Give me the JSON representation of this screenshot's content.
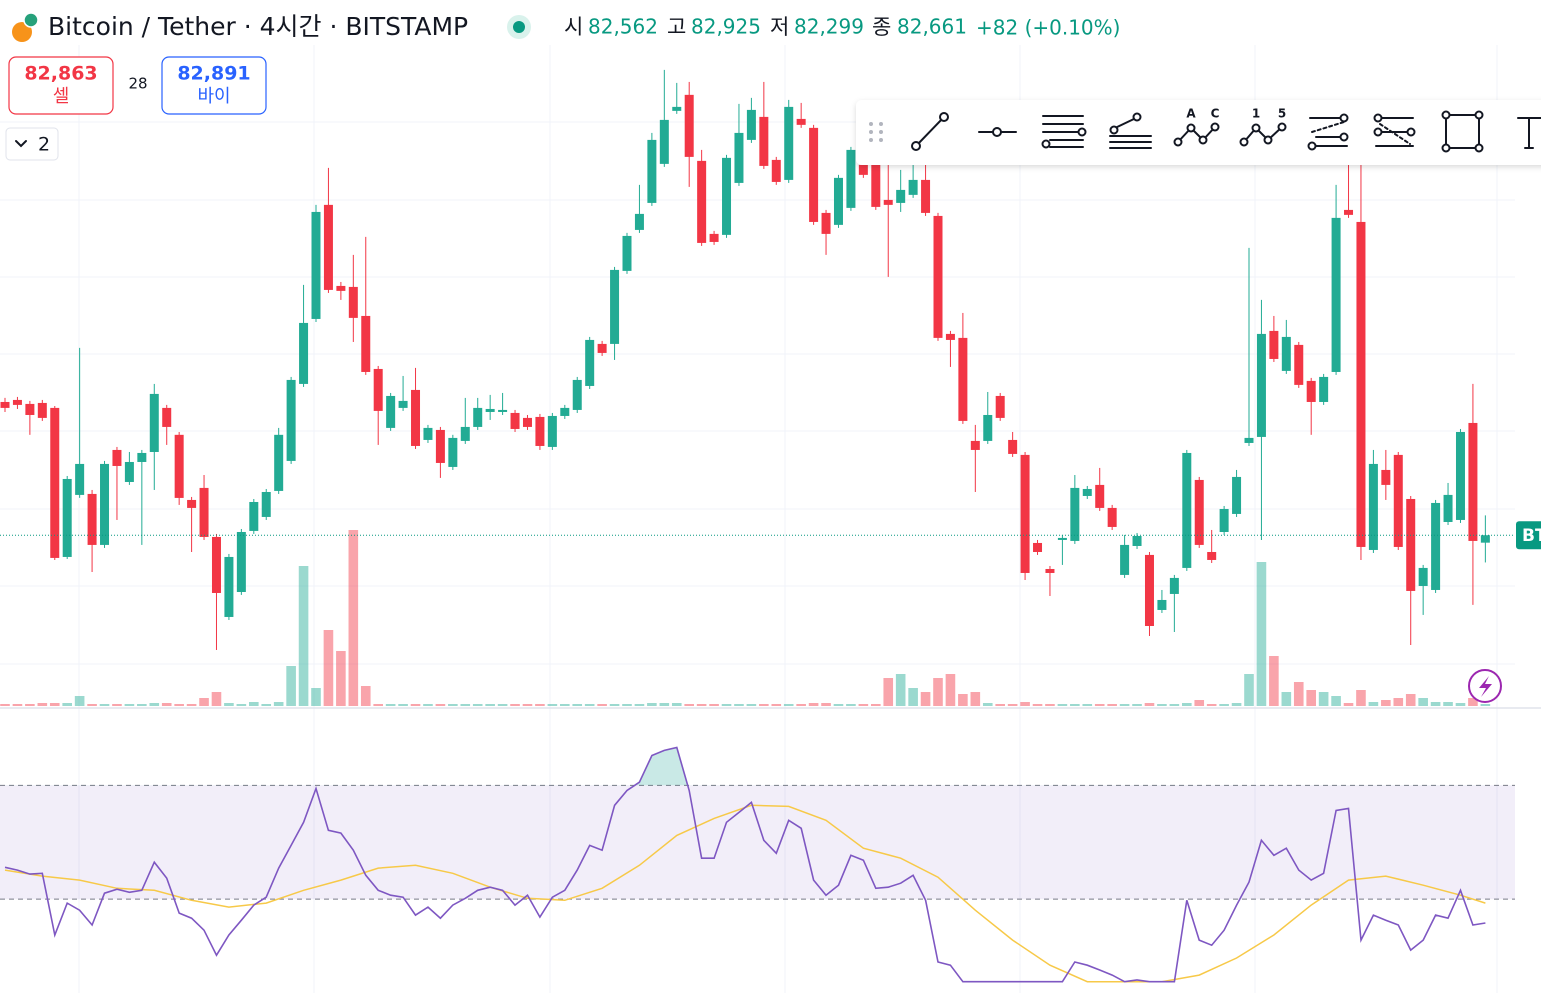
{
  "header": {
    "symbol": "Bitcoin / Tether · 4시간 · BITSTAMP",
    "open_label": "시",
    "open": "82,562",
    "high_label": "고",
    "high": "82,925",
    "low_label": "저",
    "low": "82,299",
    "close_label": "종",
    "close": "82,661",
    "change": "+82 (+0.10%)"
  },
  "trade": {
    "sell_price": "82,863",
    "sell_label": "셀",
    "spread": 28,
    "buy_price": "82,891",
    "buy_label": "바이"
  },
  "indicator_toggle": "2",
  "toolbar": {
    "labels": [
      "A",
      "C",
      "1",
      "5"
    ]
  },
  "chart_data": {
    "type": "candlestick",
    "up_color": "#22ab94",
    "down_color": "#f23645",
    "ylim": [
      80390,
      89180
    ],
    "price_label": "BT",
    "ohlc": [
      [
        84433,
        84487,
        84300,
        84354
      ],
      [
        84460,
        84500,
        84340,
        84394
      ],
      [
        84407,
        84447,
        83996,
        84260
      ],
      [
        84420,
        84460,
        84181,
        84221
      ],
      [
        84354,
        84380,
        82332,
        82359
      ],
      [
        82372,
        83449,
        82345,
        83409
      ],
      [
        83197,
        85152,
        83157,
        83609
      ],
      [
        83210,
        83263,
        82172,
        82532
      ],
      [
        82532,
        83649,
        82492,
        83609
      ],
      [
        83795,
        83835,
        82864,
        83582
      ],
      [
        83369,
        83768,
        83330,
        83635
      ],
      [
        83635,
        83795,
        82532,
        83755
      ],
      [
        83768,
        84673,
        83263,
        84540
      ],
      [
        84354,
        84394,
        83862,
        84101
      ],
      [
        83996,
        84034,
        83064,
        83157
      ],
      [
        83130,
        83170,
        82438,
        83024
      ],
      [
        83290,
        83462,
        82598,
        82638
      ],
      [
        82638,
        82678,
        81135,
        81893
      ],
      [
        81574,
        82412,
        81534,
        82372
      ],
      [
        81906,
        82744,
        81867,
        82704
      ],
      [
        82718,
        83143,
        82678,
        83103
      ],
      [
        82904,
        83276,
        82864,
        83236
      ],
      [
        83250,
        84088,
        83210,
        83996
      ],
      [
        83649,
        84766,
        83609,
        84726
      ],
      [
        84673,
        85990,
        84633,
        85484
      ],
      [
        85537,
        87054,
        85497,
        86960
      ],
      [
        87054,
        87546,
        85883,
        85923
      ],
      [
        85976,
        86029,
        85790,
        85910
      ],
      [
        85963,
        86389,
        85231,
        85551
      ],
      [
        85577,
        86628,
        84793,
        84832
      ],
      [
        84872,
        84912,
        83862,
        84314
      ],
      [
        84088,
        84553,
        84048,
        84513
      ],
      [
        84354,
        84779,
        84314,
        84447
      ],
      [
        84593,
        84886,
        83808,
        83848
      ],
      [
        83928,
        84128,
        83888,
        84088
      ],
      [
        84061,
        84101,
        83423,
        83622
      ],
      [
        83569,
        83996,
        83529,
        83955
      ],
      [
        83915,
        84487,
        83875,
        84101
      ],
      [
        84101,
        84487,
        84061,
        84354
      ],
      [
        84300,
        84527,
        84194,
        84340
      ],
      [
        84300,
        84553,
        84260,
        84327
      ],
      [
        84287,
        84327,
        84034,
        84074
      ],
      [
        84221,
        84260,
        84061,
        84101
      ],
      [
        84234,
        84274,
        83795,
        83848
      ],
      [
        83835,
        84287,
        83795,
        84247
      ],
      [
        84247,
        84394,
        84207,
        84354
      ],
      [
        84327,
        84766,
        84287,
        84726
      ],
      [
        84646,
        85298,
        84606,
        85258
      ],
      [
        85205,
        85245,
        85045,
        85085
      ],
      [
        85205,
        86229,
        84992,
        86189
      ],
      [
        86176,
        86681,
        86136,
        86641
      ],
      [
        86721,
        87320,
        86681,
        86934
      ],
      [
        87080,
        88011,
        87040,
        87918
      ],
      [
        87599,
        88849,
        87559,
        88184
      ],
      [
        88304,
        88676,
        88264,
        88357
      ],
      [
        88517,
        88689,
        87293,
        87692
      ],
      [
        87639,
        87785,
        86508,
        86548
      ],
      [
        86668,
        86708,
        86522,
        86561
      ],
      [
        86655,
        87719,
        86615,
        87679
      ],
      [
        87346,
        88397,
        87306,
        88011
      ],
      [
        87918,
        88477,
        87878,
        88317
      ],
      [
        88224,
        88689,
        87532,
        87572
      ],
      [
        87652,
        87692,
        87320,
        87359
      ],
      [
        87386,
        88450,
        87346,
        88357
      ],
      [
        88197,
        88410,
        88078,
        88118
      ],
      [
        88078,
        88118,
        86788,
        86827
      ],
      [
        86947,
        86987,
        86389,
        86668
      ],
      [
        86788,
        87453,
        86748,
        87413
      ],
      [
        87014,
        87825,
        86974,
        87785
      ],
      [
        87586,
        87719,
        87413,
        87453
      ],
      [
        87586,
        87785,
        86987,
        87027
      ],
      [
        87120,
        87652,
        86096,
        87054
      ],
      [
        87080,
        87519,
        86960,
        87253
      ],
      [
        87187,
        87586,
        87147,
        87386
      ],
      [
        87386,
        87586,
        86907,
        86947
      ],
      [
        86907,
        86947,
        85245,
        85285
      ],
      [
        85338,
        85378,
        84899,
        85258
      ],
      [
        85285,
        85617,
        84141,
        84181
      ],
      [
        83915,
        84128,
        83236,
        83795
      ],
      [
        83915,
        84566,
        83875,
        84260
      ],
      [
        84513,
        84553,
        84181,
        84221
      ],
      [
        83928,
        84034,
        83702,
        83742
      ],
      [
        83729,
        83768,
        82066,
        82159
      ],
      [
        82558,
        82598,
        82399,
        82438
      ],
      [
        82212,
        82252,
        81853,
        82159
      ],
      [
        82598,
        82665,
        82266,
        82625
      ],
      [
        82585,
        83462,
        82545,
        83290
      ],
      [
        83183,
        83316,
        83143,
        83276
      ],
      [
        83330,
        83556,
        82984,
        83024
      ],
      [
        83024,
        83064,
        82731,
        82771
      ],
      [
        82133,
        82665,
        82093,
        82532
      ],
      [
        82518,
        82691,
        82478,
        82651
      ],
      [
        82399,
        82438,
        81321,
        81454
      ],
      [
        81667,
        81933,
        81627,
        81800
      ],
      [
        81880,
        82133,
        81374,
        82093
      ],
      [
        82226,
        83795,
        82186,
        83755
      ],
      [
        83396,
        83436,
        82492,
        82532
      ],
      [
        82438,
        82731,
        82292,
        82332
      ],
      [
        82704,
        83050,
        82665,
        83010
      ],
      [
        82944,
        83529,
        82904,
        83436
      ],
      [
        83888,
        86482,
        83848,
        83955
      ],
      [
        83968,
        85790,
        82598,
        85338
      ],
      [
        85378,
        85577,
        84965,
        85005
      ],
      [
        84846,
        85524,
        84806,
        85298
      ],
      [
        85192,
        85231,
        84620,
        84660
      ],
      [
        84713,
        84753,
        83996,
        84433
      ],
      [
        84433,
        84806,
        84394,
        84766
      ],
      [
        84832,
        87320,
        84793,
        86881
      ],
      [
        86987,
        87612,
        86881,
        86921
      ],
      [
        86827,
        87586,
        82332,
        82505
      ],
      [
        82465,
        83795,
        82425,
        83609
      ],
      [
        83529,
        83795,
        83130,
        83330
      ],
      [
        83729,
        83768,
        82465,
        82505
      ],
      [
        83143,
        83183,
        81202,
        81920
      ],
      [
        81986,
        82266,
        81601,
        82226
      ],
      [
        81933,
        83130,
        81893,
        83090
      ],
      [
        82837,
        83356,
        82797,
        83197
      ],
      [
        82864,
        84074,
        82824,
        84034
      ],
      [
        84154,
        84673,
        81734,
        82585
      ],
      [
        82562,
        82925,
        82299,
        82661
      ]
    ],
    "volume": [
      2,
      2,
      2,
      3,
      3,
      3,
      10,
      2,
      2,
      2,
      2,
      2,
      3,
      3,
      2,
      2,
      8,
      14,
      3,
      2,
      4,
      2,
      4,
      40,
      140,
      18,
      76,
      55,
      176,
      20,
      2,
      2,
      2,
      2,
      2,
      2,
      2,
      2,
      2,
      2,
      2,
      2,
      2,
      2,
      2,
      2,
      2,
      2,
      2,
      2,
      2,
      2,
      3,
      3,
      3,
      2,
      2,
      2,
      2,
      2,
      2,
      2,
      2,
      2,
      2,
      3,
      3,
      2,
      2,
      2,
      2,
      28,
      32,
      18,
      14,
      28,
      32,
      12,
      14,
      3,
      2,
      2,
      4,
      2,
      2,
      2,
      2,
      2,
      2,
      2,
      2,
      2,
      3,
      2,
      2,
      3,
      6,
      2,
      2,
      3,
      32,
      144,
      50,
      14,
      24,
      16,
      14,
      10,
      3,
      16,
      4,
      6,
      8,
      12,
      8,
      4,
      4,
      3,
      8,
      2
    ],
    "rsi": {
      "color": "#7e57c2",
      "ylim": [
        0,
        100
      ],
      "levels": [
        70,
        30
      ],
      "values": [
        41.2,
        40.2,
        38.8,
        39.1,
        17.4,
        28.6,
        26.1,
        20.9,
        32.1,
        33.5,
        32.4,
        33.1,
        43.0,
        37.4,
        25.1,
        23.3,
        19.1,
        10.3,
        17.4,
        22.6,
        27.9,
        30.7,
        40.9,
        48.9,
        57.0,
        68.9,
        54.2,
        53.2,
        47.2,
        38.4,
        33.1,
        31.4,
        30.7,
        24.4,
        27.2,
        23.3,
        27.9,
        30.3,
        33.1,
        34.2,
        33.1,
        27.9,
        31.4,
        23.7,
        30.7,
        33.1,
        40.2,
        48.9,
        47.2,
        63.0,
        68.2,
        71.1,
        80.5,
        82.3,
        83.3,
        68.2,
        44.4,
        44.4,
        57.0,
        60.5,
        64.0,
        50.7,
        46.1,
        57.7,
        54.9,
        36.7,
        31.4,
        34.9,
        45.4,
        43.7,
        33.8,
        34.2,
        35.6,
        38.4,
        29.6,
        7.9,
        6.8,
        1,
        1,
        1,
        1,
        1,
        1,
        1,
        1,
        1,
        7.9,
        6.8,
        5.1,
        3.3,
        1,
        1.6,
        1,
        1,
        1,
        29.6,
        15.6,
        13.8,
        19.1,
        27.9,
        36.0,
        50.7,
        45.4,
        47.9,
        40.2,
        36.7,
        39.1,
        61.2,
        61.9,
        15.6,
        24.4,
        22.6,
        20.9,
        12.1,
        15.6,
        24.4,
        23.3,
        33.1,
        20.9,
        21.6
      ],
      "ma": {
        "color": "#f7c948",
        "x": [
          0,
          3,
          6,
          9,
          12,
          15,
          18,
          21,
          24,
          27,
          30,
          33,
          36,
          39,
          42,
          45,
          48,
          51,
          54,
          57,
          60,
          63,
          66,
          69,
          72,
          75,
          78,
          81,
          84,
          87,
          90,
          93,
          96,
          99,
          102,
          105,
          108,
          111,
          114,
          117,
          119
        ],
        "values": [
          40.2,
          38.1,
          36.7,
          33.8,
          33.1,
          29.6,
          27.2,
          28.6,
          33.1,
          36.7,
          40.9,
          41.9,
          39.1,
          34.2,
          30.3,
          29.6,
          33.8,
          41.9,
          52.4,
          58.4,
          63.0,
          62.6,
          57.7,
          47.9,
          44.4,
          37.7,
          26.1,
          15.6,
          6.8,
          1,
          1,
          1,
          3.3,
          9.3,
          17.4,
          27.9,
          36.7,
          38.1,
          34.9,
          31.4,
          28.6
        ]
      }
    }
  }
}
